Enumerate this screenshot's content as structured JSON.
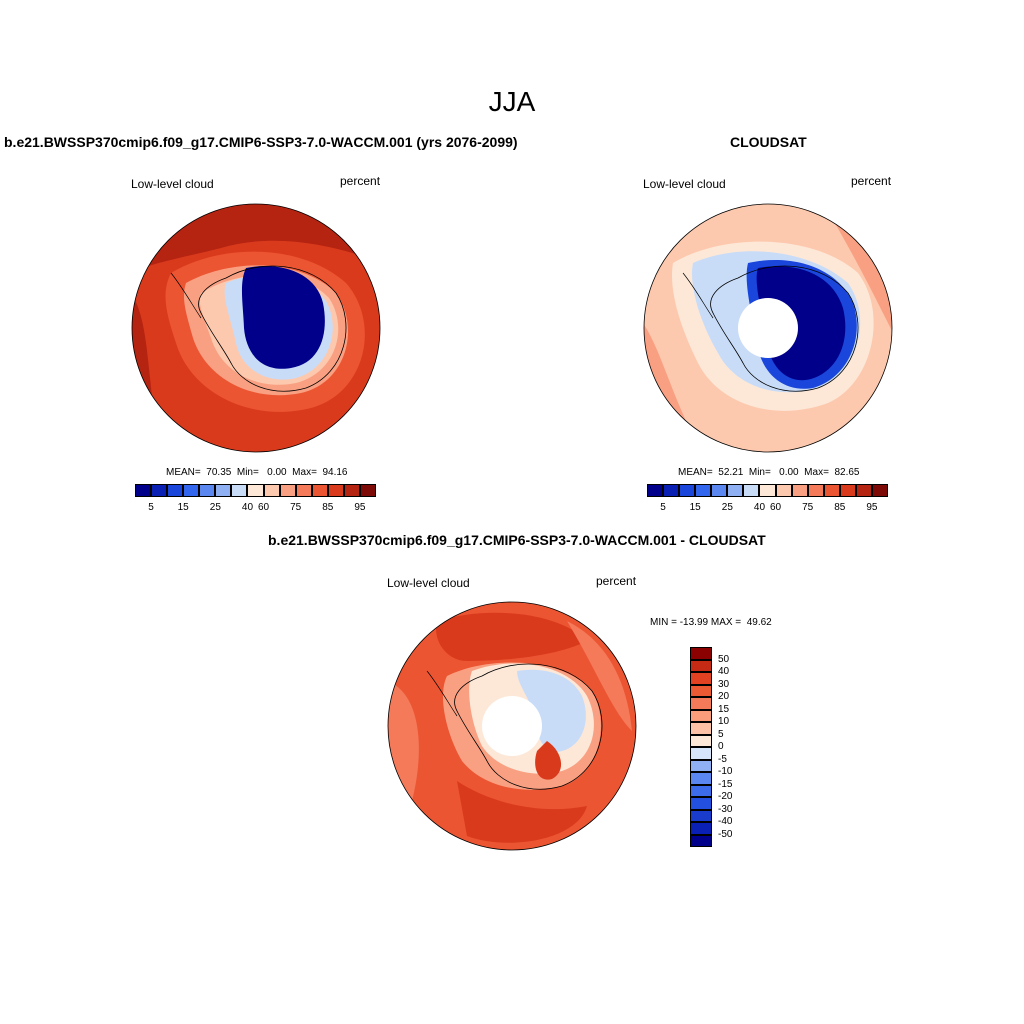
{
  "figure": {
    "title": "JJA",
    "panels": [
      {
        "title": "b.e21.BWSSP370cmip6.f09_g17.CMIP6-SSP3-7.0-WACCM.001 (yrs 2076-2099)",
        "left_label": "Low-level cloud",
        "right_label": "percent",
        "stats": "MEAN=  70.35  Min=   0.00  Max=  94.16",
        "stats_values": {
          "mean": 70.35,
          "min": 0.0,
          "max": 94.16
        },
        "has_pole_hole": false
      },
      {
        "title": "CLOUDSAT",
        "left_label": "Low-level cloud",
        "right_label": "percent",
        "stats": "MEAN=  52.21  Min=   0.00  Max=  82.65",
        "stats_values": {
          "mean": 52.21,
          "min": 0.0,
          "max": 82.65
        },
        "has_pole_hole": true
      },
      {
        "title": "b.e21.BWSSP370cmip6.f09_g17.CMIP6-SSP3-7.0-WACCM.001 - CLOUDSAT",
        "left_label": "Low-level cloud",
        "right_label": "percent",
        "stats": "MIN = -13.99 MAX =  49.62",
        "stats_values": {
          "min": -13.99,
          "max": 49.62
        },
        "has_pole_hole": true
      }
    ]
  },
  "colorbar_abs": {
    "colors": [
      "#00008b",
      "#0a1fb4",
      "#1a46db",
      "#3366ee",
      "#5b87f1",
      "#8fb0f3",
      "#c8dcf8",
      "#fde8d8",
      "#fdc9ae",
      "#f9a083",
      "#f47a5a",
      "#ec5532",
      "#d93a1c",
      "#b52311",
      "#7d0a06"
    ],
    "tick_labels": [
      "5",
      "15",
      "25",
      "40",
      "60",
      "75",
      "85",
      "95"
    ]
  },
  "colorbar_diff": {
    "colors": [
      "#00008b",
      "#0a1fb4",
      "#1a3ccc",
      "#2450e0",
      "#3d6ceb",
      "#5b87f1",
      "#8fb0f3",
      "#d6e5fa",
      "#fde8d8",
      "#fdc2a6",
      "#f99d7a",
      "#f47a5a",
      "#ec5a34",
      "#e24122",
      "#c52a14",
      "#8b0000"
    ],
    "tick_labels": [
      "50",
      "40",
      "30",
      "20",
      "15",
      "10",
      "5",
      "0",
      "-5",
      "-10",
      "-15",
      "-20",
      "-30",
      "-40",
      "-50"
    ]
  },
  "legend": {
    "colors": {
      "dark_red": "#b52311",
      "red": "#d93a1c",
      "orange_red": "#ec5532",
      "salmon": "#f47a5a",
      "light_salmon": "#f9a083",
      "peach": "#fdc9ae",
      "cream": "#fde8d8",
      "light_blue": "#c8dcf8",
      "mid_blue": "#5b87f1",
      "blue": "#1a46db",
      "navy": "#00008b"
    }
  }
}
